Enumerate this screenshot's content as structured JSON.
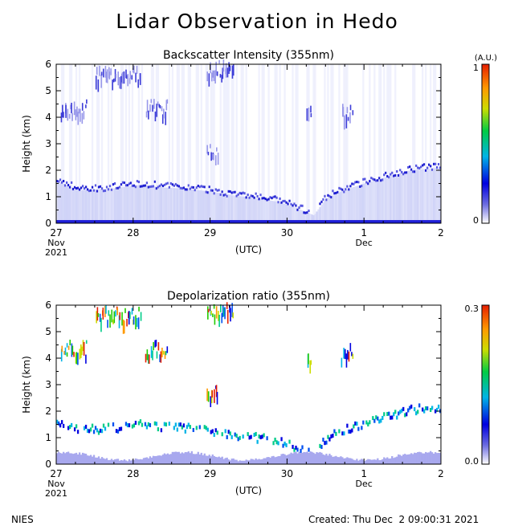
{
  "page": {
    "title": "Lidar Observation in Hedo",
    "footer_left": "NIES",
    "footer_right": "Created: Thu Dec  2 09:00:31 2021"
  },
  "chart_data": [
    {
      "type": "heatmap",
      "title": "Backscatter Intensity (355nm)",
      "ylabel": "Height (km)",
      "xlabel": "(UTC)",
      "x_ticks": [
        "27",
        "28",
        "29",
        "30",
        "1",
        "2"
      ],
      "x_sublabels": [
        {
          "at": "27",
          "lines": [
            "Nov",
            "2021"
          ]
        },
        {
          "at": "1",
          "lines": [
            "Dec"
          ]
        }
      ],
      "xlim_days": [
        27,
        32
      ],
      "ylim": [
        0,
        6
      ],
      "y_ticks": [
        0,
        1,
        2,
        3,
        4,
        5,
        6
      ],
      "colorbar": {
        "unit": "(A.U.)",
        "min_label": "0",
        "max_label": "1"
      },
      "layers": {
        "boundary_layer_km": [
          [
            27.0,
            1.6
          ],
          [
            27.3,
            1.25
          ],
          [
            27.7,
            1.3
          ],
          [
            28.1,
            1.45
          ],
          [
            28.4,
            1.35
          ],
          [
            28.7,
            1.3
          ],
          [
            29.0,
            1.2
          ],
          [
            29.3,
            1.05
          ],
          [
            29.6,
            0.95
          ],
          [
            29.9,
            0.8
          ],
          [
            30.1,
            0.6
          ],
          [
            30.35,
            0.3
          ],
          [
            30.5,
            0.9
          ],
          [
            30.7,
            1.2
          ],
          [
            31.0,
            1.5
          ],
          [
            31.3,
            1.75
          ],
          [
            31.6,
            2.0
          ],
          [
            32.0,
            2.1
          ]
        ],
        "mid_level_clouds": [
          {
            "start": 27.05,
            "end": 27.4,
            "height": 4.4
          },
          {
            "start": 27.5,
            "end": 28.1,
            "height": 5.7
          },
          {
            "start": 28.15,
            "end": 28.45,
            "height": 4.4
          },
          {
            "start": 28.95,
            "end": 29.3,
            "height": 5.9
          },
          {
            "start": 28.95,
            "end": 29.1,
            "height": 2.8
          },
          {
            "start": 30.25,
            "end": 30.32,
            "height": 4.2
          },
          {
            "start": 30.7,
            "end": 30.85,
            "height": 4.3
          }
        ]
      }
    },
    {
      "type": "heatmap",
      "title": "Depolarization ratio (355nm)",
      "ylabel": "Height (km)",
      "xlabel": "(UTC)",
      "x_ticks": [
        "27",
        "28",
        "29",
        "30",
        "1",
        "2"
      ],
      "x_sublabels": [
        {
          "at": "27",
          "lines": [
            "Nov",
            "2021"
          ]
        },
        {
          "at": "1",
          "lines": [
            "Dec"
          ]
        }
      ],
      "xlim_days": [
        27,
        32
      ],
      "ylim": [
        0,
        6
      ],
      "y_ticks": [
        0,
        1,
        2,
        3,
        4,
        5,
        6
      ],
      "colorbar": {
        "min_label": "0.0",
        "max_label": "0.3"
      }
    }
  ]
}
